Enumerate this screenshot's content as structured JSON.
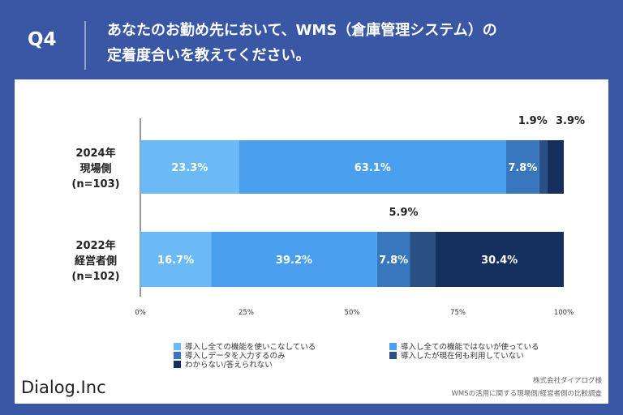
{
  "header": {
    "question_label": "Q4",
    "title_line1": "あなたのお勤め先において、WMS（倉庫管理システム）の",
    "title_line2": "定着度合いを教えてください。"
  },
  "chart_data": {
    "type": "bar",
    "orientation": "horizontal",
    "stacked": true,
    "categories": [
      {
        "lines": [
          "2024年",
          "現場側",
          "(n=103)"
        ]
      },
      {
        "lines": [
          "2022年",
          "経営者側",
          "(n=102)"
        ]
      }
    ],
    "series": [
      {
        "name": "導入し全ての機能を使いこなしている",
        "color": "#6cbaf5",
        "values": [
          23.3,
          16.7
        ]
      },
      {
        "name": "導入し全ての機能ではないが使っている",
        "color": "#4a9fef",
        "values": [
          63.1,
          39.2
        ]
      },
      {
        "name": "導入しデータを入力するのみ",
        "color": "#3877bd",
        "values": [
          7.8,
          7.8
        ]
      },
      {
        "name": "導入したが現在何も利用していない",
        "color": "#294f84",
        "values": [
          1.9,
          5.9
        ]
      },
      {
        "name": "わからない/答えられない",
        "color": "#15305e",
        "values": [
          3.9,
          30.4
        ]
      }
    ],
    "x_ticks": [
      "0%",
      "25%",
      "50%",
      "75%",
      "100%"
    ],
    "xlim": [
      0,
      100
    ],
    "label_text_color": "#ffffff",
    "outside_label_color": "#222222"
  },
  "footer": {
    "logo_text": "Dialog.Inc",
    "credit_line1": "株式会社ダイアログ様",
    "credit_line2": "WMSの活用に関する現場側/経営者側の比較調査"
  }
}
